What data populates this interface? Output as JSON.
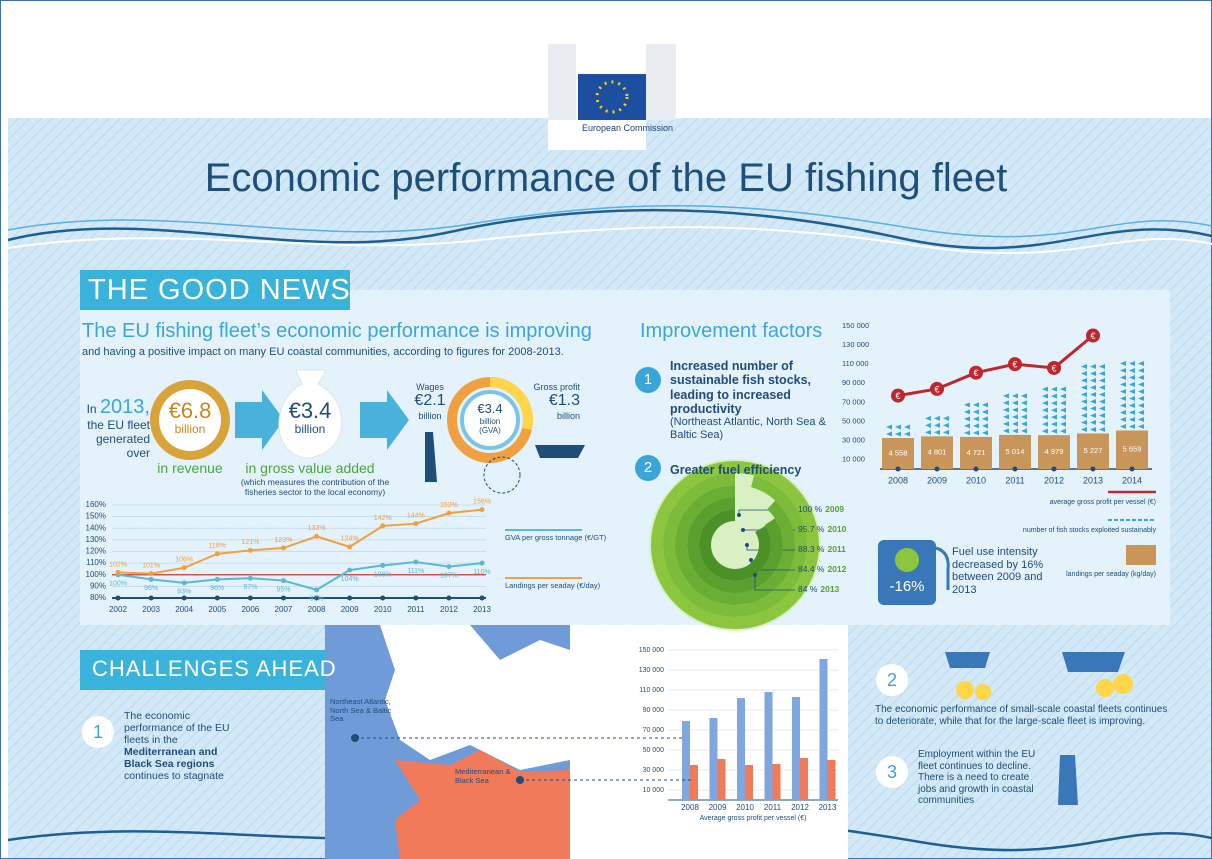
{
  "header": {
    "logo": "European Commission",
    "title": "Economic performance of the EU fishing fleet"
  },
  "good_news": {
    "heading": "THE GOOD NEWS",
    "subtitle": "The EU fishing fleet’s economic performance is improving",
    "description": "and having a positive impact on many EU coastal communities, according to figures for 2008-2013.",
    "revenue": {
      "prefix": "In",
      "year": "2013,",
      "text": "the EU fleet generated over",
      "amount": "€6.8",
      "unit": "billion",
      "caption": "in revenue"
    },
    "gva": {
      "amount": "€3.4",
      "unit": "billion",
      "caption": "in gross value added",
      "note": "(which measures the contribution of the fisheries sector to the local economy)"
    },
    "split": {
      "wages_label": "Wages",
      "wages_amount": "€2.1",
      "wages_unit": "billion",
      "profit_label": "Gross profit",
      "profit_amount": "€1.3",
      "profit_unit": "billion",
      "center_amount": "€3.4",
      "center_unit": "billion",
      "center_note": "(GVA)"
    },
    "index_chart": {
      "type": "line",
      "categories": [
        "2002",
        "2003",
        "2004",
        "2005",
        "2006",
        "2007",
        "2008",
        "2009",
        "2010",
        "2011",
        "2012",
        "2013"
      ],
      "series": [
        {
          "name": "GVA per gross tonnage (€/GT)",
          "color": "#5bb8d4",
          "values": [
            100,
            96,
            93,
            96,
            97,
            95,
            87,
            104,
            108,
            111,
            107,
            110
          ],
          "value_labels": [
            "100%",
            "96%",
            "93%",
            "96%",
            "97%",
            "95%",
            "87%",
            "104%",
            "108%",
            "111%",
            "107%",
            "110%"
          ]
        },
        {
          "name": "Landings per seaday (€/day)",
          "color": "#f0a040",
          "values": [
            102,
            101,
            106,
            118,
            121,
            123,
            133,
            124,
            142,
            144,
            153,
            156
          ],
          "value_labels": [
            "102%",
            "101%",
            "106%",
            "118%",
            "121%",
            "123%",
            "133%",
            "124%",
            "142%",
            "144%",
            "153%",
            "156%"
          ]
        }
      ],
      "reference": {
        "value": 100,
        "color": "#d8332f"
      },
      "ylim": [
        80,
        160
      ],
      "yticks": [
        {
          "value": 80,
          "label": "80%"
        },
        {
          "value": 90,
          "label": "90%"
        },
        {
          "value": 100,
          "label": "100%"
        },
        {
          "value": 110,
          "label": "110%"
        },
        {
          "value": 120,
          "label": "120%"
        },
        {
          "value": 130,
          "label": "130%"
        },
        {
          "value": 140,
          "label": "140%"
        },
        {
          "value": 150,
          "label": "150%"
        },
        {
          "value": 160,
          "label": "160%"
        }
      ],
      "grid": true
    },
    "improvement": {
      "heading": "Improvement factors",
      "items": [
        {
          "number": "1",
          "title": "Increased number of sustainable fish stocks, leading to increased productivity",
          "detail": "(Northeast Atlantic, North Sea & Baltic Sea)"
        },
        {
          "number": "2",
          "title": "Greater fuel efficiency"
        }
      ]
    },
    "profit_chart": {
      "type": "bar_line",
      "categories": [
        "2008",
        "2009",
        "2010",
        "2011",
        "2012",
        "2013",
        "2014"
      ],
      "ylim": [
        0,
        150000
      ],
      "yticks": [
        {
          "value": 10000,
          "label": "10 000"
        },
        {
          "value": 30000,
          "label": "30 000"
        },
        {
          "value": 50000,
          "label": "50 000"
        },
        {
          "value": 70000,
          "label": "70 000"
        },
        {
          "value": 90000,
          "label": "90 000"
        },
        {
          "value": 110000,
          "label": "110 000"
        },
        {
          "value": 130000,
          "label": "130 000"
        },
        {
          "value": 150000,
          "label": "150 000"
        }
      ],
      "line": {
        "name": "average gross profit per vessel (€)",
        "color": "#c0262d",
        "marker": "€",
        "values": [
          77000,
          84000,
          101000,
          110000,
          106000,
          140000,
          null
        ]
      },
      "stocks": {
        "name": "number of fish stocks exploited sustainably",
        "color": "#3aa6d8",
        "values": [
          2,
          3,
          5,
          6,
          7,
          10,
          10
        ]
      },
      "bars": {
        "name": "landings per seaday (kg/day)",
        "color": "#c8955a",
        "values": [
          4558,
          4801,
          4721,
          5014,
          4979,
          5227,
          5659
        ],
        "value_labels": [
          "4 558",
          "4 801",
          "4 721",
          "5 014",
          "4 979",
          "5 227",
          "5 659"
        ]
      }
    },
    "fuel_chart": {
      "type": "rings",
      "categories": [
        "2009",
        "2010",
        "2011",
        "2012",
        "2013"
      ],
      "values": [
        100,
        95.7,
        88.3,
        84.4,
        84
      ],
      "value_labels": [
        "100 %",
        "95.7 %",
        "88.3 %",
        "84.4 %",
        "84 %"
      ],
      "colors": [
        "#8cc63f",
        "#7dbb3a",
        "#6aae33",
        "#5aa02e",
        "#4a9128"
      ]
    },
    "fuel": {
      "badge": "-16%",
      "text": "Fuel use intensity decreased by 16% between 2009 and 2013"
    }
  },
  "challenges": {
    "heading": "CHALLENGES AHEAD",
    "item1": {
      "number": "1",
      "text_start": "The economic performance of the EU fleets in the",
      "text_bold": "Mediterranean and Black Sea regions",
      "text_end": "continues to stagnate"
    },
    "regional_chart": {
      "type": "bar",
      "categories": [
        "2008",
        "2009",
        "2010",
        "2011",
        "2012",
        "2013"
      ],
      "series": [
        {
          "name": "Northeast Atlantic, North Sea & Baltic Sea",
          "color": "#7fa6de",
          "values": [
            79000,
            82000,
            102000,
            108000,
            103000,
            141000
          ]
        },
        {
          "name": "Mediterranean & Black Sea",
          "color": "#f07a5a",
          "values": [
            35000,
            41000,
            35000,
            36000,
            42000,
            40000
          ]
        }
      ],
      "xlabel": "Average gross profit per vessel (€)",
      "ylim": [
        0,
        150000
      ],
      "yticks": [
        {
          "value": 10000,
          "label": "10 000"
        },
        {
          "value": 30000,
          "label": "30 000"
        },
        {
          "value": 50000,
          "label": "50 000"
        },
        {
          "value": 70000,
          "label": "70 000"
        },
        {
          "value": 90000,
          "label": "90 000"
        },
        {
          "value": 110000,
          "label": "110 000"
        },
        {
          "value": 130000,
          "label": "130 000"
        },
        {
          "value": 150000,
          "label": "150 000"
        }
      ],
      "grid": true
    },
    "item2": {
      "number": "2",
      "text": "The economic performance of small-scale coastal fleets continues to deteriorate, while that for the large-scale fleet is improving."
    },
    "item3": {
      "number": "3",
      "text": "Employment within the EU fleet continues to decline. There is a need to create jobs and growth in coastal communities"
    }
  }
}
